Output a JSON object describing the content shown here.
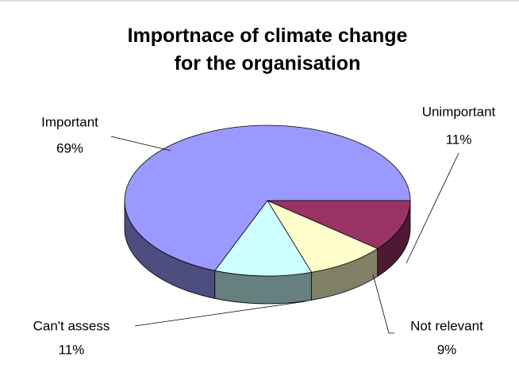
{
  "chart_data": {
    "type": "pie3d",
    "title": "Importnace of climate change for the organisation",
    "categories": [
      "Important",
      "Unimportant",
      "Not relevant",
      "Can't assess"
    ],
    "values": [
      69,
      11,
      9,
      11
    ],
    "value_labels": [
      "69%",
      "11%",
      "9%",
      "11%"
    ],
    "colors": [
      "#9999ff",
      "#993366",
      "#ffffcc",
      "#ccffff"
    ],
    "legend": false
  }
}
